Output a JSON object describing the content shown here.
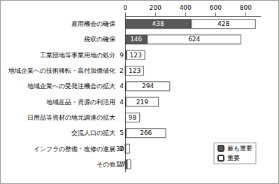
{
  "chart_data": {
    "type": "bar",
    "orientation": "horizontal",
    "stacked": true,
    "data_labels": true,
    "grid": false,
    "legend": "lower right",
    "categories": [
      "雇用機会の確保",
      "税収の確保",
      "工業団地等事業用地の処分",
      "地域企業への技術移転・高付加価値化",
      "地域企業への受発注機会の拡大",
      "地域産品・資源の利活用",
      "日用品等資材の地元調達の拡大",
      "交流人口の拡大",
      "インフラの整備・改修の進展",
      "その他"
    ],
    "series": [
      {
        "name": "最も重要",
        "color": "#595959",
        "values": [
          438,
          146,
          9,
          2,
          4,
          4,
          null,
          5,
          2,
          12
        ]
      },
      {
        "name": "重要",
        "color": "#ffffff",
        "values": [
          428,
          624,
          123,
          123,
          294,
          219,
          98,
          266,
          30,
          27
        ]
      }
    ],
    "xlim": [
      0,
      900
    ],
    "xticks": [
      0,
      200,
      400,
      600,
      800
    ]
  }
}
